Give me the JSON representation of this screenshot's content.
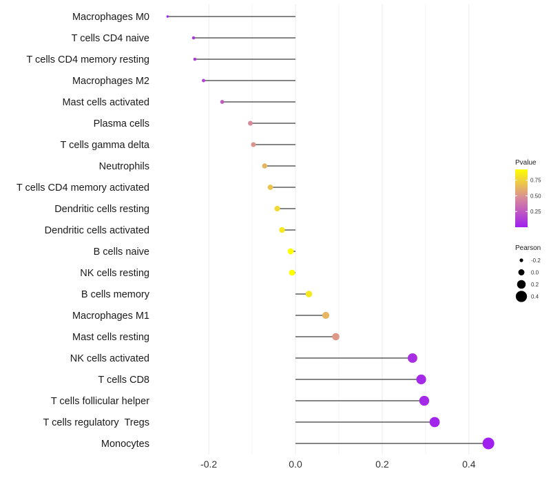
{
  "chart_data": {
    "type": "lollipop",
    "title": "",
    "xlabel": "",
    "ylabel": "",
    "xlim": [
      -0.3,
      0.45
    ],
    "x_ticks": [
      -0.2,
      0.0,
      0.2,
      0.4
    ],
    "x_tick_labels": [
      "-0.2",
      "0.0",
      "0.2",
      "0.4"
    ],
    "grid": true,
    "points": [
      {
        "category": "Macrophages M0",
        "pearson": -0.295,
        "pvalue": 0.02
      },
      {
        "category": "T cells CD4 naive",
        "pearson": -0.235,
        "pvalue": 0.1
      },
      {
        "category": "T cells CD4 memory resting",
        "pearson": -0.232,
        "pvalue": 0.11
      },
      {
        "category": "Macrophages M2",
        "pearson": -0.212,
        "pvalue": 0.16
      },
      {
        "category": "Mast cells activated",
        "pearson": -0.169,
        "pvalue": 0.26
      },
      {
        "category": "Plasma cells",
        "pearson": -0.104,
        "pvalue": 0.46
      },
      {
        "category": "T cells gamma delta",
        "pearson": -0.097,
        "pvalue": 0.5
      },
      {
        "category": "Neutrophils",
        "pearson": -0.071,
        "pvalue": 0.63
      },
      {
        "category": "T cells CD4 memory activated",
        "pearson": -0.058,
        "pvalue": 0.69
      },
      {
        "category": "Dendritic cells resting",
        "pearson": -0.042,
        "pvalue": 0.77
      },
      {
        "category": "Dendritic cells activated",
        "pearson": -0.031,
        "pvalue": 0.83
      },
      {
        "category": "B cells naive",
        "pearson": -0.011,
        "pvalue": 0.94
      },
      {
        "category": "NK cells resting",
        "pearson": -0.008,
        "pvalue": 0.95
      },
      {
        "category": "B cells memory",
        "pearson": 0.031,
        "pvalue": 0.83
      },
      {
        "category": "Macrophages M1",
        "pearson": 0.07,
        "pvalue": 0.63
      },
      {
        "category": "Mast cells resting",
        "pearson": 0.093,
        "pvalue": 0.52
      },
      {
        "category": "NK cells activated",
        "pearson": 0.27,
        "pvalue": 0.06
      },
      {
        "category": "T cells CD8",
        "pearson": 0.29,
        "pvalue": 0.04
      },
      {
        "category": "T cells follicular helper",
        "pearson": 0.297,
        "pvalue": 0.04
      },
      {
        "category": "T cells regulatory  Tregs",
        "pearson": 0.321,
        "pvalue": 0.02
      },
      {
        "category": "Monocytes",
        "pearson": 0.445,
        "pvalue": 0.001
      }
    ],
    "color_legend": {
      "title": "Pvalue",
      "ticks": [
        0.25,
        0.5,
        0.75
      ],
      "tick_labels": [
        "0.25",
        "0.50",
        "0.75"
      ],
      "range": [
        0.0,
        0.92
      ],
      "low_color": "#a020f0",
      "mid_color": "#d8899a",
      "high_color": "#ffff00"
    },
    "size_legend": {
      "title": "Pearson",
      "values": [
        -0.2,
        0.0,
        0.2,
        0.4
      ],
      "labels": [
        "-0.2",
        "0.0",
        "0.2",
        "0.4"
      ]
    }
  }
}
